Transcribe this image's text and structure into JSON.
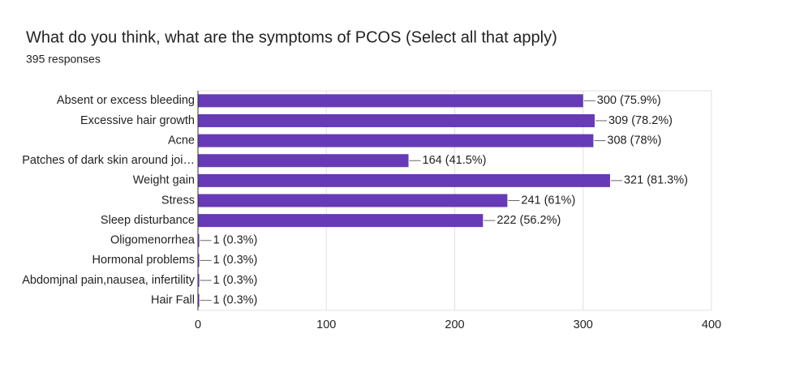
{
  "chart_data": {
    "type": "bar",
    "orientation": "horizontal",
    "title": "What do you think, what are the symptoms of PCOS (Select all that apply)",
    "subtitle": "395 responses",
    "categories": [
      "Absent or excess bleeding",
      "Excessive hair growth",
      "Acne",
      "Patches of dark skin around joi…",
      "Weight gain",
      "Stress",
      "Sleep disturbance",
      "Oligomenorrhea",
      "Hormonal problems",
      "Abdomjnal pain,nausea, infertility",
      "Hair Fall"
    ],
    "values": [
      300,
      309,
      308,
      164,
      321,
      241,
      222,
      1,
      1,
      1,
      1
    ],
    "value_labels": [
      "300 (75.9%)",
      "309 (78.2%)",
      "308 (78%)",
      "164 (41.5%)",
      "321 (81.3%)",
      "241 (61%)",
      "222 (56.2%)",
      "1 (0.3%)",
      "1 (0.3%)",
      "1 (0.3%)",
      "1 (0.3%)"
    ],
    "color": "#673ab7",
    "xlim": [
      0,
      400
    ],
    "xticks": [
      0,
      100,
      200,
      300,
      400
    ],
    "grid": true
  }
}
